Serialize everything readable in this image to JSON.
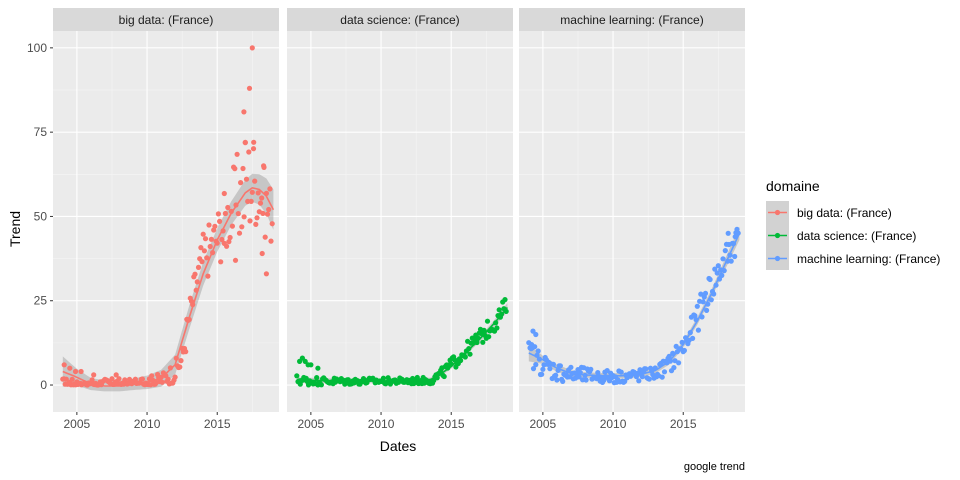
{
  "chart_data": {
    "type": "scatter",
    "xlabel": "Dates",
    "ylabel": "Trend",
    "caption": "google trend",
    "legend_title": "domaine",
    "legend_position": "right",
    "grid": true,
    "smoothing": "loess curve with confidence band",
    "xlim": [
      2003.3,
      2019.4
    ],
    "ylim": [
      -8,
      105
    ],
    "x_ticks": [
      2005,
      2010,
      2015
    ],
    "x_tick_labels": [
      "2005",
      "2010",
      "2015"
    ],
    "y_ticks": [
      0,
      25,
      50,
      75,
      100
    ],
    "y_tick_labels": [
      "0",
      "25",
      "50",
      "75",
      "100"
    ],
    "panels": [
      {
        "title": "big data: (France)",
        "series": "big data: (France)",
        "color": "#F8766D",
        "anchors": [
          [
            2004,
            0.6
          ],
          [
            2005,
            0.3
          ],
          [
            2006,
            0.3
          ],
          [
            2007,
            0.4
          ],
          [
            2008,
            0.5
          ],
          [
            2009,
            0.6
          ],
          [
            2010,
            0.8
          ],
          [
            2011,
            1.5
          ],
          [
            2012,
            4
          ],
          [
            2012.5,
            8
          ],
          [
            2013,
            20
          ],
          [
            2013.5,
            30
          ],
          [
            2014,
            38
          ],
          [
            2015,
            44
          ],
          [
            2016,
            52
          ],
          [
            2017,
            59
          ],
          [
            2017.5,
            61
          ],
          [
            2018,
            58
          ],
          [
            2018.5,
            53
          ],
          [
            2019,
            50
          ]
        ],
        "noise_amp": [
          [
            2004,
            1.5
          ],
          [
            2008,
            1.5
          ],
          [
            2011,
            2
          ],
          [
            2012.5,
            4
          ],
          [
            2013.5,
            7
          ],
          [
            2015,
            9
          ],
          [
            2016,
            11
          ],
          [
            2017,
            18
          ],
          [
            2018,
            11
          ],
          [
            2019,
            9
          ]
        ],
        "outliers": [
          [
            2004.1,
            6
          ],
          [
            2004.5,
            5
          ],
          [
            2004.9,
            4
          ],
          [
            2005.3,
            4
          ],
          [
            2006.2,
            3
          ],
          [
            2007.8,
            3
          ],
          [
            2017.5,
            100
          ],
          [
            2017.3,
            88
          ],
          [
            2016.9,
            81
          ],
          [
            2017.0,
            72
          ],
          [
            2018.2,
            39
          ],
          [
            2018.5,
            33
          ],
          [
            2016.3,
            37
          ],
          [
            2015.5,
            42
          ],
          [
            2017.6,
            72
          ],
          [
            2018.3,
            65
          ]
        ],
        "smooth": [
          [
            2004,
            4
          ],
          [
            2005,
            2.3
          ],
          [
            2006,
            0.3
          ],
          [
            2007,
            -0.3
          ],
          [
            2008,
            -0.3
          ],
          [
            2009,
            0.2
          ],
          [
            2010,
            0.8
          ],
          [
            2011,
            2
          ],
          [
            2012,
            6
          ],
          [
            2013,
            20
          ],
          [
            2014,
            33
          ],
          [
            2015,
            43
          ],
          [
            2016,
            51
          ],
          [
            2017,
            57
          ],
          [
            2017.5,
            58.5
          ],
          [
            2018,
            58
          ],
          [
            2018.5,
            56
          ],
          [
            2019,
            52
          ]
        ],
        "band": [
          [
            2004,
            4.5
          ],
          [
            2005,
            2.5
          ],
          [
            2006,
            1.8
          ],
          [
            2007,
            1.6
          ],
          [
            2008,
            1.6
          ],
          [
            2009,
            1.7
          ],
          [
            2010,
            2
          ],
          [
            2011,
            2.5
          ],
          [
            2012,
            3
          ],
          [
            2013,
            3.5
          ],
          [
            2014,
            3.5
          ],
          [
            2015,
            3.5
          ],
          [
            2016,
            3.5
          ],
          [
            2017,
            3.8
          ],
          [
            2018,
            4.5
          ],
          [
            2019,
            6
          ]
        ]
      },
      {
        "title": "data science: (France)",
        "series": "data science: (France)",
        "color": "#00BA38",
        "anchors": [
          [
            2004,
            1.5
          ],
          [
            2005,
            1.2
          ],
          [
            2008,
            1.1
          ],
          [
            2010,
            1.2
          ],
          [
            2012,
            1.2
          ],
          [
            2013.5,
            1.4
          ],
          [
            2014,
            2.5
          ],
          [
            2014.5,
            4
          ],
          [
            2015,
            6
          ],
          [
            2015.5,
            8
          ],
          [
            2016,
            10
          ],
          [
            2016.5,
            12
          ],
          [
            2017,
            14
          ],
          [
            2017.5,
            16
          ],
          [
            2018,
            18
          ],
          [
            2018.5,
            21
          ],
          [
            2019,
            24
          ]
        ],
        "noise_amp": [
          [
            2004,
            1.5
          ],
          [
            2008,
            1
          ],
          [
            2013,
            1
          ],
          [
            2015,
            2
          ],
          [
            2017,
            2.5
          ],
          [
            2019,
            3
          ]
        ],
        "outliers": [
          [
            2004.2,
            7
          ],
          [
            2004.4,
            8
          ],
          [
            2004.8,
            6
          ],
          [
            2005.0,
            6
          ],
          [
            2004.6,
            7
          ],
          [
            2005.5,
            5
          ]
        ],
        "smooth": [
          [
            2004,
            1.5
          ],
          [
            2006,
            1.3
          ],
          [
            2008,
            1.2
          ],
          [
            2010,
            1.2
          ],
          [
            2012,
            1.3
          ],
          [
            2013.5,
            1.6
          ],
          [
            2014,
            2.5
          ],
          [
            2015,
            5.5
          ],
          [
            2016,
            9.5
          ],
          [
            2017,
            13.5
          ],
          [
            2018,
            18
          ],
          [
            2019,
            23
          ]
        ],
        "band": [
          [
            2004,
            0.8
          ],
          [
            2010,
            0.5
          ],
          [
            2014,
            0.6
          ],
          [
            2016,
            0.7
          ],
          [
            2018,
            0.9
          ],
          [
            2019,
            1.3
          ]
        ]
      },
      {
        "title": "machine learning: (France)",
        "series": "machine learning: (France)",
        "color": "#619CFF",
        "anchors": [
          [
            2004,
            9
          ],
          [
            2004.5,
            8
          ],
          [
            2005,
            6
          ],
          [
            2006,
            4
          ],
          [
            2007,
            3
          ],
          [
            2008,
            2.8
          ],
          [
            2009,
            2.5
          ],
          [
            2010,
            2.5
          ],
          [
            2011,
            2.6
          ],
          [
            2012,
            2.8
          ],
          [
            2013,
            3.5
          ],
          [
            2014,
            6
          ],
          [
            2015,
            11
          ],
          [
            2015.5,
            15
          ],
          [
            2016,
            20
          ],
          [
            2016.5,
            25
          ],
          [
            2017,
            29
          ],
          [
            2017.5,
            33
          ],
          [
            2018,
            37
          ],
          [
            2018.5,
            41
          ],
          [
            2019,
            45
          ]
        ],
        "noise_amp": [
          [
            2004,
            4
          ],
          [
            2006,
            3
          ],
          [
            2009,
            2
          ],
          [
            2013,
            2
          ],
          [
            2015,
            4
          ],
          [
            2017,
            5
          ],
          [
            2019,
            5
          ]
        ],
        "outliers": [
          [
            2004.3,
            16
          ],
          [
            2004.5,
            15
          ],
          [
            2004.2,
            12
          ],
          [
            2018.7,
            44
          ],
          [
            2018.2,
            45
          ]
        ],
        "smooth": [
          [
            2004,
            9.5
          ],
          [
            2005,
            7.5
          ],
          [
            2006,
            5
          ],
          [
            2007,
            3.5
          ],
          [
            2008,
            3
          ],
          [
            2009,
            2.8
          ],
          [
            2010,
            2.7
          ],
          [
            2011,
            2.8
          ],
          [
            2012,
            3.2
          ],
          [
            2013,
            4.3
          ],
          [
            2014,
            7
          ],
          [
            2015,
            12
          ],
          [
            2016,
            19
          ],
          [
            2017,
            27
          ],
          [
            2018,
            36
          ],
          [
            2019,
            45
          ]
        ],
        "band": [
          [
            2004,
            2.5
          ],
          [
            2005,
            1.2
          ],
          [
            2008,
            0.8
          ],
          [
            2012,
            0.8
          ],
          [
            2015,
            1
          ],
          [
            2017,
            1.2
          ],
          [
            2019,
            2
          ]
        ]
      }
    ],
    "legend_entries": [
      {
        "label": "big data: (France)",
        "color": "#F8766D"
      },
      {
        "label": "data science: (France)",
        "color": "#00BA38"
      },
      {
        "label": "machine learning: (France)",
        "color": "#619CFF"
      }
    ]
  }
}
